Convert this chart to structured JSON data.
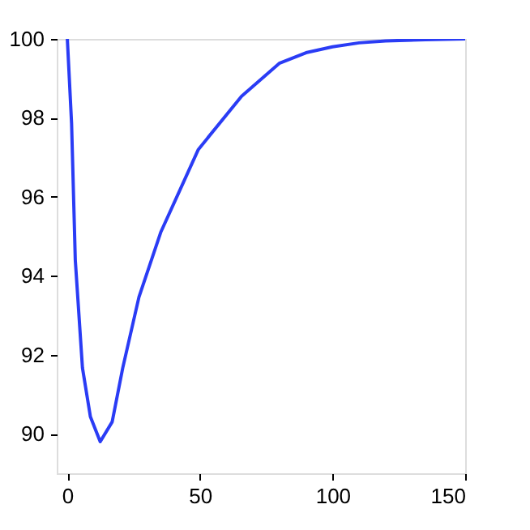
{
  "chart_data": {
    "type": "line",
    "x": [
      0,
      1.6,
      3,
      5.7,
      8.7,
      12.4,
      16.9,
      20.9,
      27,
      35.2,
      49.4,
      65.7,
      79.9,
      90,
      100,
      110,
      120,
      135,
      150
    ],
    "series": [
      {
        "color": "#2a3cf5",
        "values": [
          100,
          97.86,
          94.4,
          91.67,
          90.43,
          89.8,
          90.3,
          91.67,
          93.46,
          95.1,
          97.2,
          98.55,
          99.38,
          99.65,
          99.8,
          99.9,
          99.95,
          99.98,
          100
        ]
      }
    ],
    "xlim": [
      -4,
      150
    ],
    "xticks": [
      0,
      50,
      100,
      150
    ],
    "ylim": [
      89,
      100
    ],
    "yticks": [
      90,
      92,
      94,
      96,
      98,
      100
    ],
    "grid": false,
    "line_style": "solid",
    "marker": "none"
  }
}
